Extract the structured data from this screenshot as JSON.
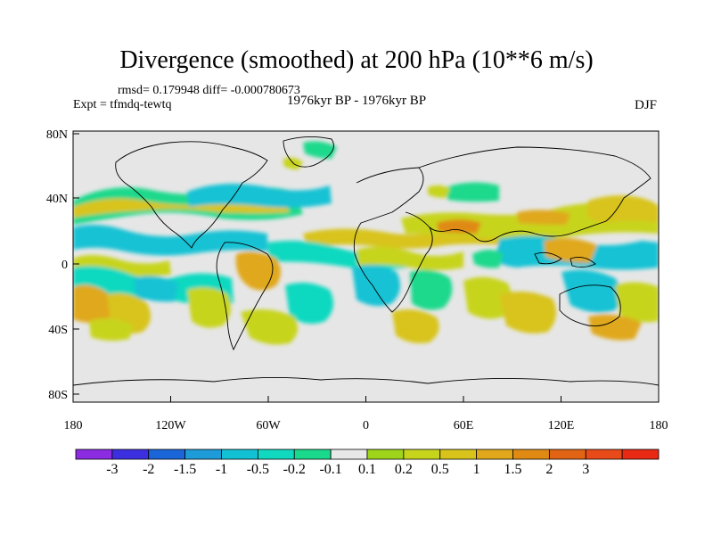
{
  "header": {
    "title": "Divergence (smoothed) at 200 hPa (10**6 m/s)",
    "stats": "rmsd= 0.179948 diff= -0.000780673",
    "experiment": "Expt = tfmdq-tewtq",
    "period": "1976kyr BP - 1976kyr BP",
    "season": "DJF"
  },
  "axes": {
    "lat_labels": [
      "80N",
      "40N",
      "0",
      "40S",
      "80S"
    ],
    "lon_labels": [
      "180",
      "120W",
      "60W",
      "0",
      "60E",
      "120E",
      "180"
    ]
  },
  "colorbar": {
    "colors": [
      "#8b2be2",
      "#3b2fe0",
      "#1a66d9",
      "#1e9bd9",
      "#12c2d4",
      "#10d9c0",
      "#1ad98c",
      "#e8e8e8",
      "#9ed41a",
      "#c7d41c",
      "#d8c41a",
      "#e0a81a",
      "#e08a14",
      "#e06414",
      "#e84a1a",
      "#e82a14"
    ],
    "labels": [
      "-3",
      "-2",
      "-1.5",
      "-1",
      "-0.5",
      "-0.2",
      "-0.1",
      "0.1",
      "0.2",
      "0.5",
      "1",
      "1.5",
      "2",
      "3"
    ]
  },
  "colors": {
    "background": "#e6e6e6",
    "coast": "#000000",
    "frame": "#000000"
  }
}
